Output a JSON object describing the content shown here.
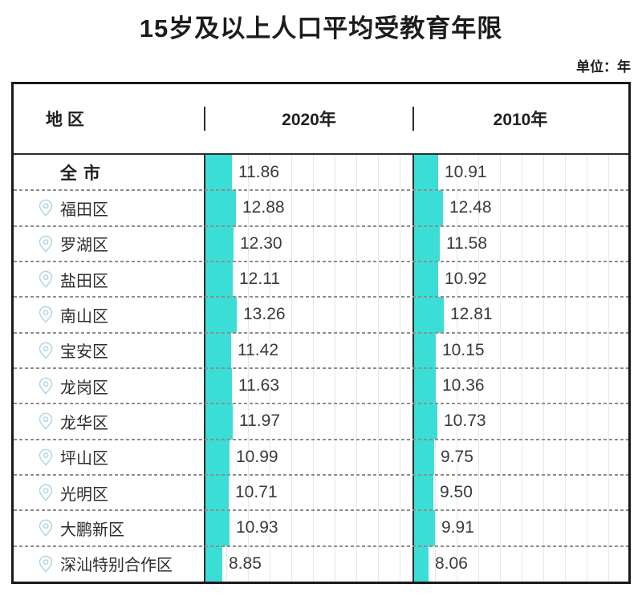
{
  "page": {
    "title": "15岁及以上人口平均受教育年限",
    "unit_label": "单位：年"
  },
  "table": {
    "headers": {
      "region": "地 区",
      "y2020": "2020年",
      "y2010": "2010年"
    },
    "rows": [
      {
        "region": "全 市",
        "is_total": true,
        "v2020": "11.86",
        "v2010": "10.91"
      },
      {
        "region": "福田区",
        "is_total": false,
        "v2020": "12.88",
        "v2010": "12.48"
      },
      {
        "region": "罗湖区",
        "is_total": false,
        "v2020": "12.30",
        "v2010": "11.58"
      },
      {
        "region": "盐田区",
        "is_total": false,
        "v2020": "12.11",
        "v2010": "10.92"
      },
      {
        "region": "南山区",
        "is_total": false,
        "v2020": "13.26",
        "v2010": "12.81"
      },
      {
        "region": "宝安区",
        "is_total": false,
        "v2020": "11.42",
        "v2010": "10.15"
      },
      {
        "region": "龙岗区",
        "is_total": false,
        "v2020": "11.63",
        "v2010": "10.36"
      },
      {
        "region": "龙华区",
        "is_total": false,
        "v2020": "11.97",
        "v2010": "10.73"
      },
      {
        "region": "坪山区",
        "is_total": false,
        "v2020": "10.99",
        "v2010": "9.75"
      },
      {
        "region": "光明区",
        "is_total": false,
        "v2020": "10.71",
        "v2010": "9.50"
      },
      {
        "region": "大鹏新区",
        "is_total": false,
        "v2020": "10.93",
        "v2010": "9.91"
      },
      {
        "region": "深汕特别合作区",
        "is_total": false,
        "v2020": "8.85",
        "v2010": "8.06"
      }
    ]
  },
  "colors": {
    "bar": "#3BDED6",
    "pin_icon": "#AFD6E4",
    "separator": "#8d8d8d",
    "gridline": "#e7e7e7",
    "border": "#1a1a1a"
  },
  "chart_data": {
    "type": "table",
    "title": "15岁及以上人口平均受教育年限",
    "unit": "年",
    "columns": [
      "地区",
      "2020年",
      "2010年"
    ],
    "categories": [
      "全市",
      "福田区",
      "罗湖区",
      "盐田区",
      "南山区",
      "宝安区",
      "龙岗区",
      "龙华区",
      "坪山区",
      "光明区",
      "大鹏新区",
      "深汕特别合作区"
    ],
    "series": [
      {
        "name": "2020年",
        "values": [
          11.86,
          12.88,
          12.3,
          12.11,
          13.26,
          11.42,
          11.63,
          11.97,
          10.99,
          10.71,
          10.93,
          8.85
        ]
      },
      {
        "name": "2010年",
        "values": [
          10.91,
          12.48,
          11.58,
          10.92,
          12.81,
          10.15,
          10.36,
          10.73,
          9.75,
          9.5,
          9.91,
          8.06
        ]
      }
    ],
    "layout": "each cell shows a horizontal cyan data bar proportional to the value with the numeric label to its right"
  }
}
